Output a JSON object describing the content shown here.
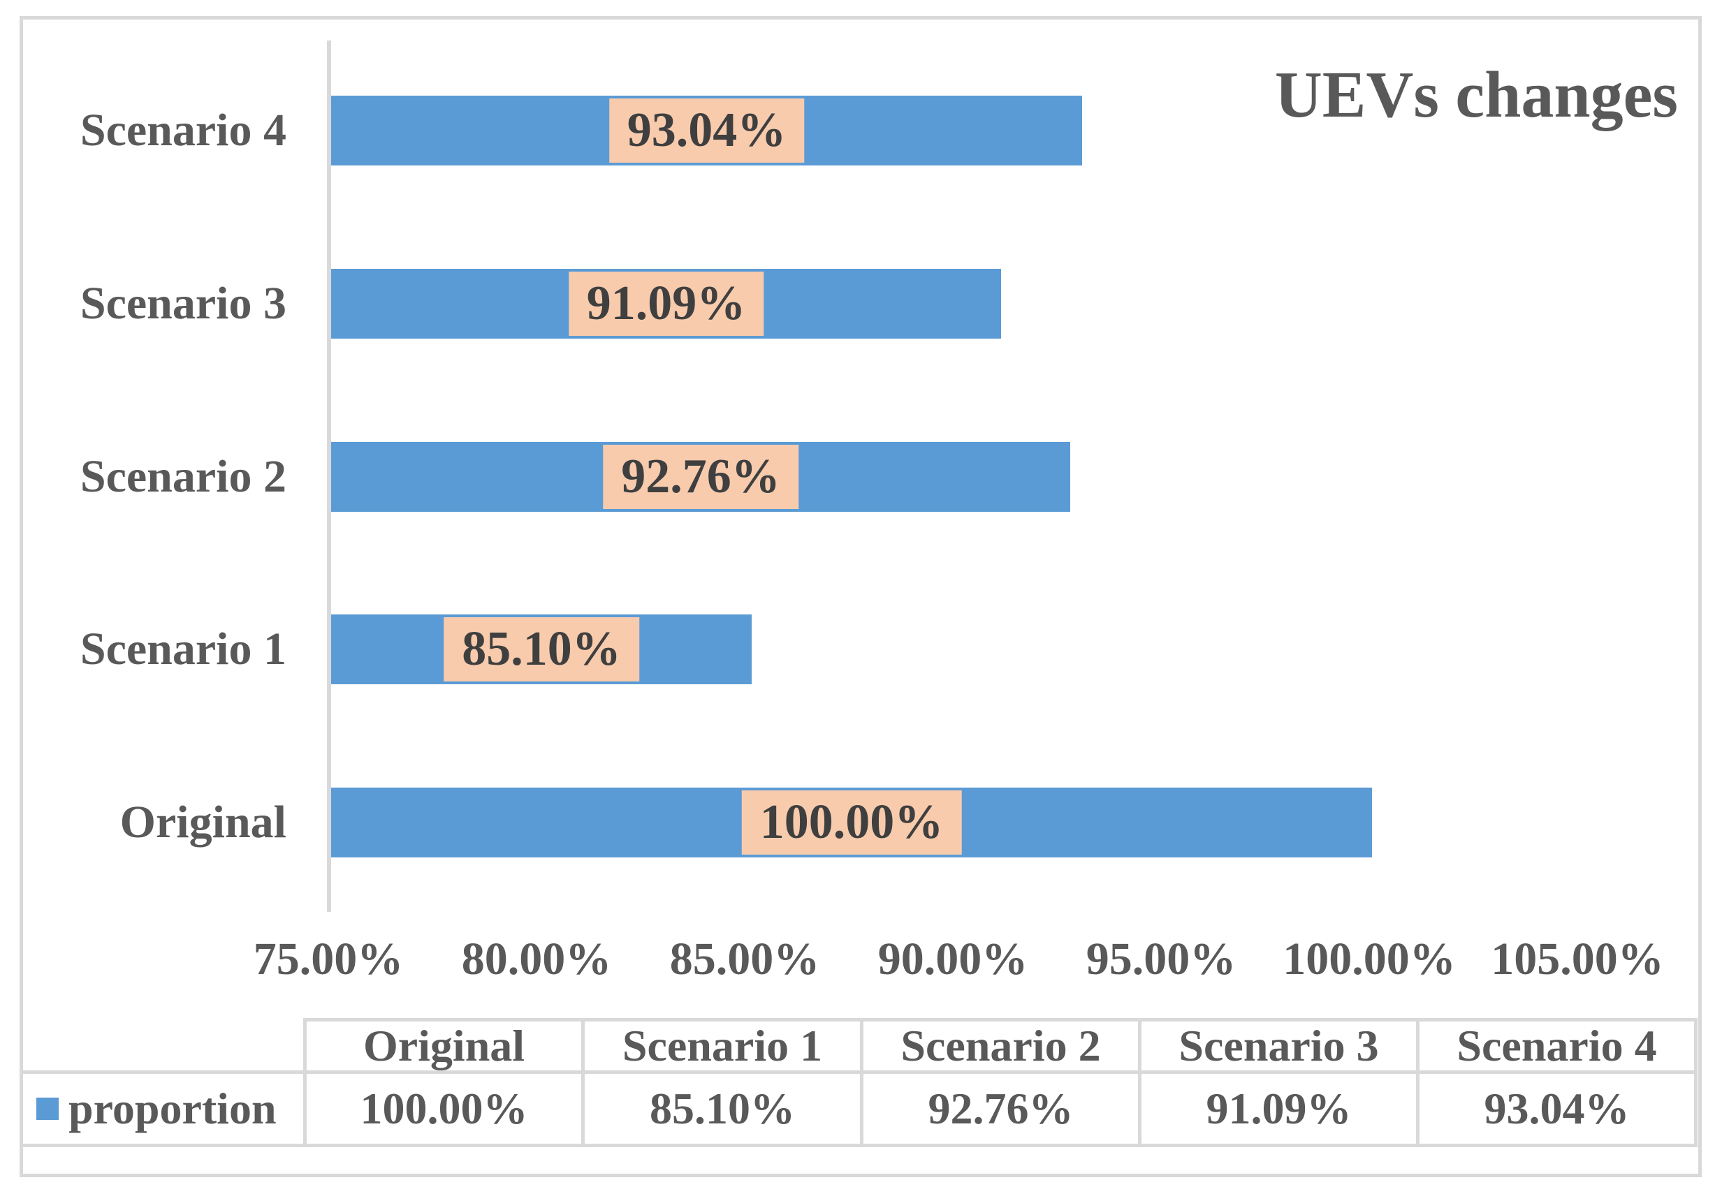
{
  "title": "UEVs changes",
  "chart_data": {
    "type": "bar",
    "orientation": "horizontal",
    "title": "UEVs changes",
    "categories": [
      "Scenario 4",
      "Scenario 3",
      "Scenario 2",
      "Scenario 1",
      "Original"
    ],
    "series": [
      {
        "name": "proportion",
        "values": [
          93.04,
          91.09,
          92.76,
          85.1,
          100.0
        ]
      }
    ],
    "value_labels": [
      "93.04%",
      "91.09%",
      "92.76%",
      "85.10%",
      "100.00%"
    ],
    "xlabel": "",
    "ylabel": "",
    "x_axis": {
      "min": 75,
      "max": 105,
      "tick_step": 5,
      "tick_labels": [
        "75.00%",
        "80.00%",
        "85.00%",
        "90.00%",
        "95.00%",
        "100.00%",
        "105.00%"
      ]
    },
    "gridlines": false,
    "legend_position": "bottom-table",
    "colors": {
      "bar": "#5b9bd5",
      "value_label_bg": "#f8cbad",
      "value_label_text": "#3f3f3f",
      "text": "#595959",
      "line": "#d9d9d9"
    }
  },
  "data_table": {
    "corner": "",
    "headers": [
      "Original",
      "Scenario 1",
      "Scenario 2",
      "Scenario 3",
      "Scenario 4"
    ],
    "rows": [
      {
        "legend": "proportion",
        "legend_color": "#5b9bd5",
        "values": [
          "100.00%",
          "85.10%",
          "92.76%",
          "91.09%",
          "93.04%"
        ]
      }
    ]
  }
}
